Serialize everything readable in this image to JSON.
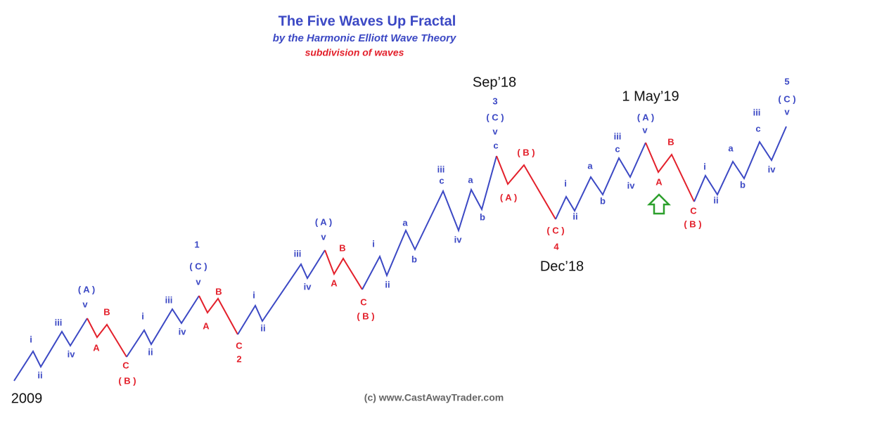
{
  "title": "The Five Waves Up Fractal",
  "subtitle": "by the Harmonic Elliott Wave Theory",
  "note": "subdivision of waves",
  "colors": {
    "blue": "#3b48c4",
    "red": "#e3202b"
  },
  "dates": [
    "2009",
    "Sep’18",
    "1 May’19",
    "Dec’18"
  ],
  "copyright": "(c) www.CastAwayTrader.com",
  "labels": [
    {
      "text": "i",
      "color": "blue"
    },
    {
      "text": "ii",
      "color": "blue"
    },
    {
      "text": "iii",
      "color": "blue"
    },
    {
      "text": "iv",
      "color": "blue"
    },
    {
      "text": "v",
      "color": "blue"
    },
    {
      "text": "( A )",
      "color": "blue"
    },
    {
      "text": "A",
      "color": "red"
    },
    {
      "text": "B",
      "color": "red"
    },
    {
      "text": "C",
      "color": "red"
    },
    {
      "text": "( B )",
      "color": "red"
    },
    {
      "text": "i",
      "color": "blue"
    },
    {
      "text": "ii",
      "color": "blue"
    },
    {
      "text": "iii",
      "color": "blue"
    },
    {
      "text": "iv",
      "color": "blue"
    },
    {
      "text": "v",
      "color": "blue"
    },
    {
      "text": "( C )",
      "color": "blue"
    },
    {
      "text": "1",
      "color": "blue"
    },
    {
      "text": "A",
      "color": "red"
    },
    {
      "text": "B",
      "color": "red"
    },
    {
      "text": "C",
      "color": "red"
    },
    {
      "text": "2",
      "color": "red"
    },
    {
      "text": "i",
      "color": "blue"
    },
    {
      "text": "ii",
      "color": "blue"
    },
    {
      "text": "iii",
      "color": "blue"
    },
    {
      "text": "iv",
      "color": "blue"
    },
    {
      "text": "v",
      "color": "blue"
    },
    {
      "text": "( A )",
      "color": "blue"
    },
    {
      "text": "A",
      "color": "red"
    },
    {
      "text": "B",
      "color": "red"
    },
    {
      "text": "C",
      "color": "red"
    },
    {
      "text": "( B )",
      "color": "red"
    },
    {
      "text": "i",
      "color": "blue"
    },
    {
      "text": "ii",
      "color": "blue"
    },
    {
      "text": "a",
      "color": "blue"
    },
    {
      "text": "b",
      "color": "blue"
    },
    {
      "text": "iii",
      "color": "blue"
    },
    {
      "text": "c",
      "color": "blue"
    },
    {
      "text": "iv",
      "color": "blue"
    },
    {
      "text": "a",
      "color": "blue"
    },
    {
      "text": "b",
      "color": "blue"
    },
    {
      "text": "3",
      "color": "blue"
    },
    {
      "text": "( C )",
      "color": "blue"
    },
    {
      "text": "v",
      "color": "blue"
    },
    {
      "text": "c",
      "color": "blue"
    },
    {
      "text": "( A )",
      "color": "red"
    },
    {
      "text": "( B )",
      "color": "red"
    },
    {
      "text": "( C )",
      "color": "red"
    },
    {
      "text": "4",
      "color": "red"
    },
    {
      "text": "i",
      "color": "blue"
    },
    {
      "text": "ii",
      "color": "blue"
    },
    {
      "text": "a",
      "color": "blue"
    },
    {
      "text": "b",
      "color": "blue"
    },
    {
      "text": "iii",
      "color": "blue"
    },
    {
      "text": "c",
      "color": "blue"
    },
    {
      "text": "iv",
      "color": "blue"
    },
    {
      "text": "( A )",
      "color": "blue"
    },
    {
      "text": "v",
      "color": "blue"
    },
    {
      "text": "A",
      "color": "red"
    },
    {
      "text": "B",
      "color": "red"
    },
    {
      "text": "C",
      "color": "red"
    },
    {
      "text": "( B )",
      "color": "red"
    },
    {
      "text": "i",
      "color": "blue"
    },
    {
      "text": "ii",
      "color": "blue"
    },
    {
      "text": "a",
      "color": "blue"
    },
    {
      "text": "b",
      "color": "blue"
    },
    {
      "text": "iii",
      "color": "blue"
    },
    {
      "text": "c",
      "color": "blue"
    },
    {
      "text": "iv",
      "color": "blue"
    },
    {
      "text": "5",
      "color": "blue"
    },
    {
      "text": "( C )",
      "color": "blue"
    },
    {
      "text": "v",
      "color": "blue"
    }
  ]
}
